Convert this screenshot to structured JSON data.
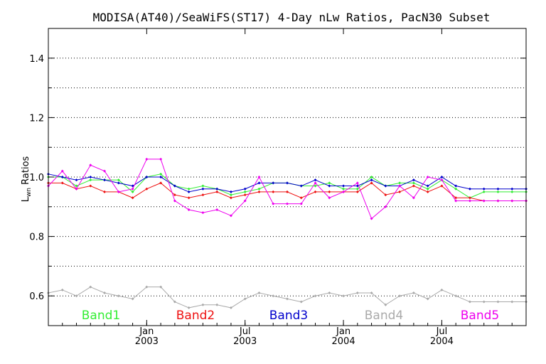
{
  "chart_data": {
    "type": "line",
    "title": "MODISA(AT40)/SeaWiFS(ST17) 4-Day nLw Ratios, PacN30 Subset",
    "ylabel_main": "L",
    "ylabel_sub": "wn",
    "ylabel_rest": " Ratios",
    "xlabel": "",
    "ylim": [
      0.5,
      1.5
    ],
    "xlim": [
      0,
      34
    ],
    "yticks": [
      {
        "value": 0.6,
        "label": "0.6"
      },
      {
        "value": 0.8,
        "label": "0.8"
      },
      {
        "value": 1.0,
        "label": "1.0"
      },
      {
        "value": 1.2,
        "label": "1.2"
      },
      {
        "value": 1.4,
        "label": "1.4"
      }
    ],
    "yminor": [
      0.7,
      0.9,
      1.1,
      1.3
    ],
    "xticks": [
      {
        "value": 7,
        "month": "Jan",
        "year": "2003"
      },
      {
        "value": 14,
        "month": "Jul",
        "year": "2003"
      },
      {
        "value": 21,
        "month": "Jan",
        "year": "2004"
      },
      {
        "value": 28,
        "month": "Jul",
        "year": "2004"
      }
    ],
    "grid": "horizontal-dotted",
    "x": [
      0,
      1,
      2,
      3,
      4,
      5,
      6,
      7,
      8,
      9,
      10,
      11,
      12,
      13,
      14,
      15,
      16,
      17,
      18,
      19,
      20,
      21,
      22,
      23,
      24,
      25,
      26,
      27,
      28,
      29,
      30,
      31,
      32,
      33,
      34
    ],
    "series": [
      {
        "name": "Band1",
        "color": "#33ee33",
        "values": [
          1.0,
          1.0,
          0.97,
          0.99,
          0.99,
          0.99,
          0.95,
          1.0,
          1.01,
          0.97,
          0.96,
          0.97,
          0.96,
          0.94,
          0.95,
          0.96,
          0.98,
          0.98,
          0.97,
          0.97,
          0.98,
          0.96,
          0.96,
          1.0,
          0.97,
          0.98,
          0.98,
          0.96,
          0.99,
          0.96,
          0.93,
          0.95,
          0.95,
          0.95,
          0.95
        ]
      },
      {
        "name": "Band2",
        "color": "#ee1111",
        "values": [
          0.98,
          0.98,
          0.96,
          0.97,
          0.95,
          0.95,
          0.93,
          0.96,
          0.98,
          0.94,
          0.93,
          0.94,
          0.95,
          0.93,
          0.94,
          0.95,
          0.95,
          0.95,
          0.93,
          0.95,
          0.95,
          0.95,
          0.95,
          0.98,
          0.94,
          0.95,
          0.97,
          0.95,
          0.97,
          0.93,
          0.93,
          0.92,
          0.92,
          0.92,
          0.92
        ]
      },
      {
        "name": "Band3",
        "color": "#0000cc",
        "values": [
          1.01,
          1.0,
          0.99,
          1.0,
          0.99,
          0.98,
          0.97,
          1.0,
          1.0,
          0.97,
          0.95,
          0.96,
          0.96,
          0.95,
          0.96,
          0.98,
          0.98,
          0.98,
          0.97,
          0.99,
          0.97,
          0.97,
          0.97,
          0.99,
          0.97,
          0.97,
          0.99,
          0.97,
          1.0,
          0.97,
          0.96,
          0.96,
          0.96,
          0.96,
          0.96
        ]
      },
      {
        "name": "Band4",
        "color": "#aaaaaa",
        "values": [
          0.61,
          0.62,
          0.6,
          0.63,
          0.61,
          0.6,
          0.59,
          0.63,
          0.63,
          0.58,
          0.56,
          0.57,
          0.57,
          0.56,
          0.59,
          0.61,
          0.6,
          0.59,
          0.58,
          0.6,
          0.61,
          0.6,
          0.61,
          0.61,
          0.57,
          0.6,
          0.61,
          0.59,
          0.62,
          0.6,
          0.58,
          0.58,
          0.58,
          0.58,
          0.58
        ]
      },
      {
        "name": "Band5",
        "color": "#ee00ee",
        "values": [
          0.97,
          1.02,
          0.96,
          1.04,
          1.02,
          0.95,
          0.96,
          1.06,
          1.06,
          0.92,
          0.89,
          0.88,
          0.89,
          0.87,
          0.92,
          1.0,
          0.91,
          0.91,
          0.91,
          0.98,
          0.93,
          0.95,
          0.98,
          0.86,
          0.9,
          0.97,
          0.93,
          1.0,
          0.99,
          0.92,
          0.92,
          0.92,
          0.92,
          0.92,
          0.92
        ]
      }
    ]
  }
}
